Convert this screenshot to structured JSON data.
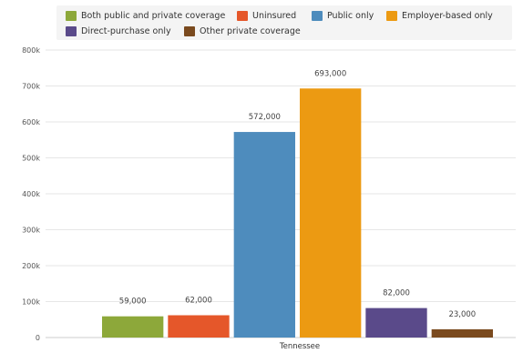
{
  "chart_data": {
    "type": "bar",
    "title": "",
    "xlabel": "",
    "ylabel": "",
    "categories": [
      "Tennessee"
    ],
    "ylim": [
      0,
      800000
    ],
    "y_ticks": [
      0,
      100000,
      200000,
      300000,
      400000,
      500000,
      600000,
      700000,
      800000
    ],
    "y_tick_labels": [
      "0",
      "100k",
      "200k",
      "300k",
      "400k",
      "500k",
      "600k",
      "700k",
      "800k"
    ],
    "grid": true,
    "legend_position": "top",
    "series": [
      {
        "name": "Both public and private coverage",
        "color": "#8da83a",
        "values": [
          59000
        ],
        "label": "59,000"
      },
      {
        "name": "Uninsured",
        "color": "#e5572a",
        "values": [
          62000
        ],
        "label": "62,000"
      },
      {
        "name": "Public only",
        "color": "#4e8cbd",
        "values": [
          572000
        ],
        "label": "572,000"
      },
      {
        "name": "Employer-based only",
        "color": "#ec9a12",
        "values": [
          693000
        ],
        "label": "693,000"
      },
      {
        "name": "Direct-purchase only",
        "color": "#5a4a8a",
        "values": [
          82000
        ],
        "label": "82,000"
      },
      {
        "name": "Other private coverage",
        "color": "#7a4a1e",
        "values": [
          23000
        ],
        "label": "23,000"
      }
    ]
  }
}
